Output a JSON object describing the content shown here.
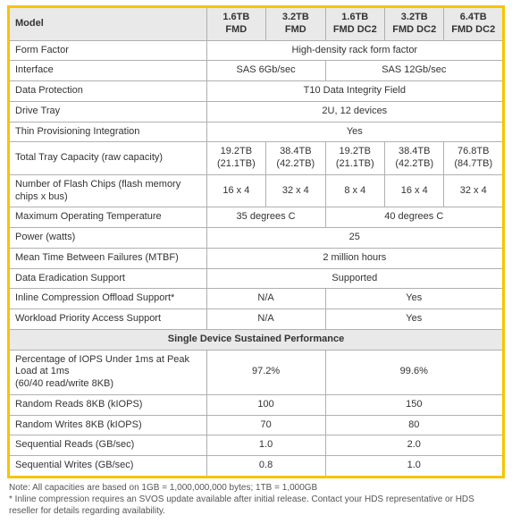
{
  "colors": {
    "accent": "#f5c500",
    "header_bg": "#e9e9e9",
    "border": "#b0b0b0",
    "text": "#333333",
    "note_text": "#555555",
    "bg": "#ffffff"
  },
  "table": {
    "header": {
      "model_label": "Model",
      "columns": [
        {
          "l1": "1.6TB",
          "l2": "FMD"
        },
        {
          "l1": "3.2TB",
          "l2": "FMD"
        },
        {
          "l1": "1.6TB",
          "l2": "FMD DC2"
        },
        {
          "l1": "3.2TB",
          "l2": "FMD DC2"
        },
        {
          "l1": "6.4TB",
          "l2": "FMD DC2"
        }
      ]
    },
    "rows": [
      {
        "label": "Form Factor",
        "cells": [
          {
            "span": 5,
            "text": "High-density rack form factor"
          }
        ]
      },
      {
        "label": "Interface",
        "cells": [
          {
            "span": 2,
            "text": "SAS 6Gb/sec"
          },
          {
            "span": 3,
            "text": "SAS 12Gb/sec"
          }
        ]
      },
      {
        "label": "Data Protection",
        "cells": [
          {
            "span": 5,
            "text": "T10 Data Integrity Field"
          }
        ]
      },
      {
        "label": "Drive Tray",
        "cells": [
          {
            "span": 5,
            "text": "2U, 12 devices"
          }
        ]
      },
      {
        "label": "Thin Provisioning Integration",
        "cells": [
          {
            "span": 5,
            "text": "Yes"
          }
        ]
      },
      {
        "label": "Total Tray Capacity (raw capacity)",
        "cells": [
          {
            "span": 1,
            "text": "19.2TB",
            "sub": "(21.1TB)"
          },
          {
            "span": 1,
            "text": "38.4TB",
            "sub": "(42.2TB)"
          },
          {
            "span": 1,
            "text": "19.2TB",
            "sub": "(21.1TB)"
          },
          {
            "span": 1,
            "text": "38.4TB",
            "sub": "(42.2TB)"
          },
          {
            "span": 1,
            "text": "76.8TB",
            "sub": "(84.7TB)"
          }
        ]
      },
      {
        "label": "Number of Flash Chips (flash memory chips x bus)",
        "cells": [
          {
            "span": 1,
            "text": "16 x 4"
          },
          {
            "span": 1,
            "text": "32 x 4"
          },
          {
            "span": 1,
            "text": "8 x 4"
          },
          {
            "span": 1,
            "text": "16 x 4"
          },
          {
            "span": 1,
            "text": "32 x 4"
          }
        ]
      },
      {
        "label": "Maximum Operating Temperature",
        "cells": [
          {
            "span": 2,
            "text": "35 degrees C"
          },
          {
            "span": 3,
            "text": "40 degrees C"
          }
        ]
      },
      {
        "label": "Power (watts)",
        "cells": [
          {
            "span": 5,
            "text": "25"
          }
        ]
      },
      {
        "label": "Mean Time Between Failures (MTBF)",
        "cells": [
          {
            "span": 5,
            "text": "2 million hours"
          }
        ]
      },
      {
        "label": "Data Eradication Support",
        "cells": [
          {
            "span": 5,
            "text": "Supported"
          }
        ]
      },
      {
        "label": "Inline Compression Offload Support*",
        "cells": [
          {
            "span": 2,
            "text": "N/A"
          },
          {
            "span": 3,
            "text": "Yes"
          }
        ]
      },
      {
        "label": "Workload Priority Access Support",
        "cells": [
          {
            "span": 2,
            "text": "N/A"
          },
          {
            "span": 3,
            "text": "Yes"
          }
        ]
      }
    ],
    "section_title": "Single Device Sustained Performance",
    "perf_rows": [
      {
        "label": "Percentage of IOPS Under 1ms at Peak Load at 1ms\n(60/40 read/write 8KB)",
        "cells": [
          {
            "span": 2,
            "text": "97.2%"
          },
          {
            "span": 3,
            "text": "99.6%"
          }
        ]
      },
      {
        "label": "Random Reads 8KB (kIOPS)",
        "cells": [
          {
            "span": 2,
            "text": "100"
          },
          {
            "span": 3,
            "text": "150"
          }
        ]
      },
      {
        "label": "Random Writes 8KB (kIOPS)",
        "cells": [
          {
            "span": 2,
            "text": "70"
          },
          {
            "span": 3,
            "text": "80"
          }
        ]
      },
      {
        "label": "Sequential Reads (GB/sec)",
        "cells": [
          {
            "span": 2,
            "text": "1.0"
          },
          {
            "span": 3,
            "text": "2.0"
          }
        ]
      },
      {
        "label": "Sequential Writes (GB/sec)",
        "cells": [
          {
            "span": 2,
            "text": "0.8"
          },
          {
            "span": 3,
            "text": "1.0"
          }
        ]
      }
    ]
  },
  "notes": {
    "line1": "Note: All capacities are based on 1GB = 1,000,000,000 bytes; 1TB = 1,000GB",
    "line2": "* Inline compression requires an SVOS update available after initial release. Contact your HDS representative or HDS reseller for details regarding availability."
  },
  "layout": {
    "label_col_width_pct": 40,
    "data_col_width_pct": 12
  }
}
